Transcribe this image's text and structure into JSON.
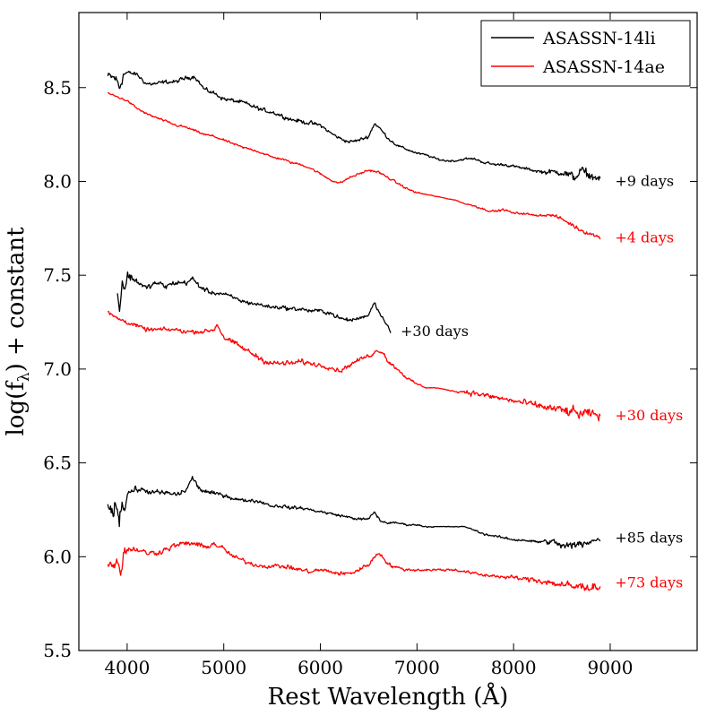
{
  "chart_data": {
    "type": "line",
    "title": "",
    "xlabel": "Rest Wavelength (Å)",
    "ylabel": "log(f",
    "ylabel_subscript": "λ",
    "ylabel_suffix": ") + constant",
    "xlim": [
      3500,
      9900
    ],
    "ylim": [
      5.5,
      8.9
    ],
    "x_ticks": [
      4000,
      5000,
      6000,
      7000,
      8000,
      9000
    ],
    "x_tick_labels": [
      "4000",
      "5000",
      "6000",
      "7000",
      "8000",
      "9000"
    ],
    "y_ticks": [
      5.5,
      6.0,
      6.5,
      7.0,
      7.5,
      8.0,
      8.5
    ],
    "y_tick_labels": [
      "5.5",
      "6.0",
      "6.5",
      "7.0",
      "7.5",
      "8.0",
      "8.5"
    ],
    "grid": false,
    "legend": {
      "position": "top-right",
      "entries": [
        {
          "label": "ASASSN-14li",
          "color": "#000000"
        },
        {
          "label": "ASASSN-14ae",
          "color": "#ff0000"
        }
      ]
    },
    "series": [
      {
        "name": "ASASSN-14li +9 days",
        "color": "#000000",
        "annotation": "+9 days",
        "annotation_x": 9050,
        "annotation_y": 8.0,
        "x": [
          3800,
          3880,
          3920,
          3960,
          4000,
          4100,
          4200,
          4300,
          4400,
          4500,
          4600,
          4700,
          4800,
          4900,
          5000,
          5100,
          5200,
          5300,
          5400,
          5500,
          5600,
          5700,
          5800,
          5900,
          6000,
          6100,
          6200,
          6300,
          6400,
          6500,
          6560,
          6620,
          6700,
          6800,
          6900,
          7000,
          7100,
          7200,
          7300,
          7400,
          7500,
          7600,
          7700,
          7800,
          7900,
          8000,
          8100,
          8200,
          8300,
          8400,
          8500,
          8550,
          8600,
          8650,
          8700,
          8750,
          8800,
          8850,
          8900
        ],
        "y": [
          8.56,
          8.55,
          8.5,
          8.57,
          8.58,
          8.57,
          8.52,
          8.52,
          8.53,
          8.53,
          8.55,
          8.56,
          8.49,
          8.47,
          8.44,
          8.43,
          8.42,
          8.4,
          8.38,
          8.37,
          8.35,
          8.33,
          8.32,
          8.31,
          8.3,
          8.26,
          8.23,
          8.21,
          8.22,
          8.24,
          8.31,
          8.28,
          8.23,
          8.19,
          8.17,
          8.15,
          8.14,
          8.12,
          8.11,
          8.11,
          8.12,
          8.12,
          8.1,
          8.09,
          8.09,
          8.08,
          8.07,
          8.06,
          8.05,
          8.05,
          8.05,
          8.04,
          8.02,
          8.03,
          8.06,
          8.04,
          8.03,
          8.02,
          8.01
        ],
        "noise": [
          0.03,
          0.04,
          0.06,
          0.03,
          0.015,
          0.015,
          0.015,
          0.015,
          0.015,
          0.015,
          0.015,
          0.015,
          0.015,
          0.015,
          0.015,
          0.015,
          0.015,
          0.015,
          0.015,
          0.015,
          0.015,
          0.015,
          0.015,
          0.015,
          0.012,
          0.012,
          0.012,
          0.012,
          0.012,
          0.012,
          0.015,
          0.012,
          0.01,
          0.01,
          0.008,
          0.008,
          0.008,
          0.008,
          0.008,
          0.008,
          0.008,
          0.008,
          0.01,
          0.01,
          0.01,
          0.01,
          0.01,
          0.012,
          0.015,
          0.02,
          0.025,
          0.035,
          0.04,
          0.035,
          0.03,
          0.035,
          0.03,
          0.025,
          0.02
        ]
      },
      {
        "name": "ASASSN-14ae +4 days",
        "color": "#ff0000",
        "annotation": "+4 days",
        "annotation_x": 9050,
        "annotation_y": 7.7,
        "x": [
          3800,
          3900,
          4000,
          4100,
          4200,
          4300,
          4400,
          4500,
          4600,
          4700,
          4800,
          4900,
          5000,
          5100,
          5200,
          5300,
          5400,
          5500,
          5600,
          5700,
          5800,
          5900,
          6000,
          6100,
          6200,
          6300,
          6400,
          6500,
          6600,
          6700,
          6800,
          6900,
          7000,
          7100,
          7200,
          7300,
          7400,
          7500,
          7600,
          7700,
          7800,
          7900,
          8000,
          8100,
          8200,
          8300,
          8400,
          8500,
          8600,
          8700,
          8800,
          8900
        ],
        "y": [
          8.47,
          8.45,
          8.43,
          8.39,
          8.36,
          8.34,
          8.32,
          8.3,
          8.29,
          8.27,
          8.25,
          8.24,
          8.22,
          8.2,
          8.18,
          8.17,
          8.15,
          8.13,
          8.12,
          8.1,
          8.09,
          8.07,
          8.04,
          8.01,
          7.99,
          8.02,
          8.04,
          8.06,
          8.05,
          8.02,
          7.99,
          7.96,
          7.94,
          7.93,
          7.92,
          7.91,
          7.9,
          7.88,
          7.87,
          7.85,
          7.84,
          7.85,
          7.83,
          7.83,
          7.82,
          7.82,
          7.82,
          7.8,
          7.77,
          7.74,
          7.72,
          7.7
        ],
        "noise": [
          0.008,
          0.008,
          0.008,
          0.008,
          0.008,
          0.008,
          0.008,
          0.008,
          0.008,
          0.008,
          0.008,
          0.008,
          0.008,
          0.008,
          0.008,
          0.008,
          0.008,
          0.008,
          0.008,
          0.008,
          0.008,
          0.008,
          0.008,
          0.008,
          0.008,
          0.008,
          0.008,
          0.008,
          0.008,
          0.008,
          0.008,
          0.008,
          0.008,
          0.004,
          0.002,
          0.002,
          0.002,
          0.004,
          0.008,
          0.008,
          0.008,
          0.008,
          0.008,
          0.008,
          0.008,
          0.008,
          0.01,
          0.012,
          0.015,
          0.015,
          0.015,
          0.012
        ]
      },
      {
        "name": "ASASSN-14li +30 days",
        "color": "#000000",
        "annotation": "+30 days",
        "annotation_x": 6830,
        "annotation_y": 7.2,
        "x": [
          3900,
          3920,
          3950,
          3980,
          4000,
          4100,
          4200,
          4300,
          4400,
          4500,
          4600,
          4680,
          4750,
          4850,
          5000,
          5100,
          5200,
          5300,
          5400,
          5500,
          5600,
          5700,
          5800,
          5900,
          6000,
          6100,
          6200,
          6300,
          6400,
          6500,
          6560,
          6600,
          6650,
          6700,
          6730
        ],
        "y": [
          7.4,
          7.31,
          7.48,
          7.42,
          7.5,
          7.47,
          7.43,
          7.46,
          7.44,
          7.46,
          7.46,
          7.48,
          7.44,
          7.41,
          7.4,
          7.38,
          7.36,
          7.35,
          7.34,
          7.33,
          7.33,
          7.32,
          7.32,
          7.31,
          7.31,
          7.3,
          7.27,
          7.26,
          7.27,
          7.29,
          7.36,
          7.31,
          7.27,
          7.23,
          7.19
        ],
        "noise": [
          0.05,
          0.04,
          0.06,
          0.05,
          0.04,
          0.025,
          0.02,
          0.02,
          0.02,
          0.02,
          0.02,
          0.02,
          0.02,
          0.015,
          0.015,
          0.015,
          0.015,
          0.015,
          0.015,
          0.015,
          0.015,
          0.015,
          0.015,
          0.015,
          0.015,
          0.015,
          0.015,
          0.015,
          0.012,
          0.012,
          0.015,
          0.012,
          0.01,
          0.008,
          0.005
        ]
      },
      {
        "name": "ASASSN-14ae +30 days",
        "color": "#ff0000",
        "annotation": "+30 days",
        "annotation_x": 9050,
        "annotation_y": 6.75,
        "x": [
          3800,
          3900,
          4000,
          4100,
          4200,
          4300,
          4400,
          4500,
          4600,
          4700,
          4800,
          4900,
          4930,
          5000,
          5100,
          5200,
          5300,
          5400,
          5500,
          5600,
          5700,
          5800,
          5900,
          6000,
          6100,
          6200,
          6300,
          6400,
          6500,
          6600,
          6650,
          6700,
          6800,
          6900,
          7000,
          7100,
          7200,
          7300,
          7400,
          7500,
          7600,
          7700,
          7800,
          7900,
          8000,
          8100,
          8200,
          8300,
          8400,
          8500,
          8600,
          8700,
          8800,
          8900
        ],
        "y": [
          7.3,
          7.27,
          7.25,
          7.23,
          7.21,
          7.21,
          7.21,
          7.21,
          7.2,
          7.2,
          7.2,
          7.21,
          7.24,
          7.17,
          7.14,
          7.11,
          7.08,
          7.05,
          7.03,
          7.03,
          7.03,
          7.04,
          7.03,
          7.02,
          7.01,
          6.99,
          7.02,
          7.05,
          7.07,
          7.1,
          7.09,
          7.04,
          7.0,
          6.95,
          6.92,
          6.9,
          6.9,
          6.89,
          6.88,
          6.88,
          6.87,
          6.86,
          6.85,
          6.84,
          6.83,
          6.82,
          6.81,
          6.8,
          6.79,
          6.78,
          6.77,
          6.76,
          6.76,
          6.75
        ],
        "noise": [
          0.015,
          0.015,
          0.015,
          0.015,
          0.015,
          0.015,
          0.015,
          0.015,
          0.015,
          0.015,
          0.015,
          0.015,
          0.015,
          0.02,
          0.02,
          0.02,
          0.02,
          0.02,
          0.02,
          0.02,
          0.02,
          0.02,
          0.015,
          0.015,
          0.015,
          0.015,
          0.015,
          0.015,
          0.015,
          0.015,
          0.015,
          0.015,
          0.012,
          0.01,
          0.008,
          0.004,
          0.003,
          0.003,
          0.004,
          0.02,
          0.02,
          0.02,
          0.02,
          0.02,
          0.02,
          0.025,
          0.025,
          0.025,
          0.03,
          0.035,
          0.04,
          0.04,
          0.035,
          0.03
        ]
      },
      {
        "name": "ASASSN-14li +85 days",
        "color": "#000000",
        "annotation": "+85 days",
        "annotation_x": 9050,
        "annotation_y": 6.1,
        "x": [
          3800,
          3840,
          3880,
          3920,
          3950,
          3980,
          4000,
          4100,
          4200,
          4300,
          4400,
          4500,
          4600,
          4680,
          4750,
          4850,
          5000,
          5100,
          5200,
          5300,
          5400,
          5500,
          5600,
          5700,
          5800,
          5900,
          6000,
          6100,
          6200,
          6300,
          6400,
          6500,
          6560,
          6620,
          6700,
          6800,
          6900,
          7000,
          7100,
          7200,
          7300,
          7400,
          7500,
          7600,
          7700,
          7800,
          7900,
          8000,
          8100,
          8200,
          8300,
          8400,
          8500,
          8550,
          8600,
          8650,
          8700,
          8750,
          8800,
          8850,
          8900
        ],
        "y": [
          6.28,
          6.22,
          6.3,
          6.2,
          6.32,
          6.24,
          6.34,
          6.36,
          6.35,
          6.34,
          6.34,
          6.33,
          6.35,
          6.42,
          6.36,
          6.34,
          6.33,
          6.31,
          6.3,
          6.3,
          6.29,
          6.27,
          6.27,
          6.26,
          6.26,
          6.25,
          6.24,
          6.23,
          6.22,
          6.21,
          6.2,
          6.2,
          6.24,
          6.19,
          6.18,
          6.18,
          6.17,
          6.17,
          6.16,
          6.16,
          6.16,
          6.16,
          6.16,
          6.14,
          6.12,
          6.11,
          6.1,
          6.09,
          6.09,
          6.08,
          6.08,
          6.08,
          6.06,
          6.05,
          6.06,
          6.06,
          6.07,
          6.08,
          6.08,
          6.09,
          6.09
        ],
        "noise": [
          0.04,
          0.05,
          0.06,
          0.07,
          0.06,
          0.05,
          0.025,
          0.02,
          0.02,
          0.02,
          0.02,
          0.02,
          0.02,
          0.02,
          0.02,
          0.015,
          0.015,
          0.012,
          0.012,
          0.012,
          0.012,
          0.012,
          0.012,
          0.012,
          0.012,
          0.01,
          0.01,
          0.01,
          0.01,
          0.01,
          0.01,
          0.01,
          0.012,
          0.01,
          0.008,
          0.008,
          0.006,
          0.006,
          0.005,
          0.003,
          0.003,
          0.003,
          0.003,
          0.006,
          0.008,
          0.008,
          0.008,
          0.01,
          0.01,
          0.012,
          0.015,
          0.02,
          0.03,
          0.04,
          0.035,
          0.03,
          0.035,
          0.025,
          0.02,
          0.015,
          0.012
        ]
      },
      {
        "name": "ASASSN-14ae +73 days",
        "color": "#ff0000",
        "annotation": "+73 days",
        "annotation_x": 9050,
        "annotation_y": 5.86,
        "x": [
          3800,
          3850,
          3900,
          3930,
          3960,
          4000,
          4100,
          4200,
          4300,
          4400,
          4500,
          4600,
          4700,
          4800,
          4900,
          5000,
          5100,
          5200,
          5300,
          5400,
          5500,
          5600,
          5700,
          5800,
          5900,
          6000,
          6100,
          6200,
          6300,
          6400,
          6500,
          6600,
          6650,
          6700,
          6800,
          6900,
          7000,
          7100,
          7200,
          7300,
          7400,
          7500,
          7600,
          7700,
          7800,
          7900,
          8000,
          8100,
          8200,
          8300,
          8400,
          8500,
          8600,
          8700,
          8800,
          8900
        ],
        "y": [
          5.97,
          5.95,
          6.0,
          5.9,
          6.02,
          6.04,
          6.04,
          6.02,
          6.02,
          6.04,
          6.06,
          6.07,
          6.07,
          6.05,
          6.07,
          6.04,
          6.0,
          5.98,
          5.96,
          5.95,
          5.95,
          5.95,
          5.94,
          5.93,
          5.92,
          5.93,
          5.92,
          5.91,
          5.91,
          5.93,
          5.96,
          6.02,
          6.0,
          5.96,
          5.94,
          5.93,
          5.93,
          5.93,
          5.93,
          5.93,
          5.93,
          5.92,
          5.91,
          5.9,
          5.9,
          5.89,
          5.89,
          5.88,
          5.88,
          5.87,
          5.86,
          5.85,
          5.84,
          5.84,
          5.84,
          5.84
        ],
        "noise": [
          0.03,
          0.04,
          0.05,
          0.06,
          0.05,
          0.025,
          0.02,
          0.02,
          0.02,
          0.02,
          0.02,
          0.02,
          0.02,
          0.02,
          0.02,
          0.02,
          0.015,
          0.015,
          0.015,
          0.015,
          0.015,
          0.015,
          0.015,
          0.015,
          0.015,
          0.015,
          0.015,
          0.015,
          0.015,
          0.015,
          0.015,
          0.015,
          0.015,
          0.015,
          0.012,
          0.01,
          0.01,
          0.01,
          0.01,
          0.01,
          0.01,
          0.01,
          0.012,
          0.012,
          0.012,
          0.012,
          0.015,
          0.015,
          0.02,
          0.025,
          0.025,
          0.03,
          0.035,
          0.035,
          0.03,
          0.025
        ]
      }
    ]
  }
}
